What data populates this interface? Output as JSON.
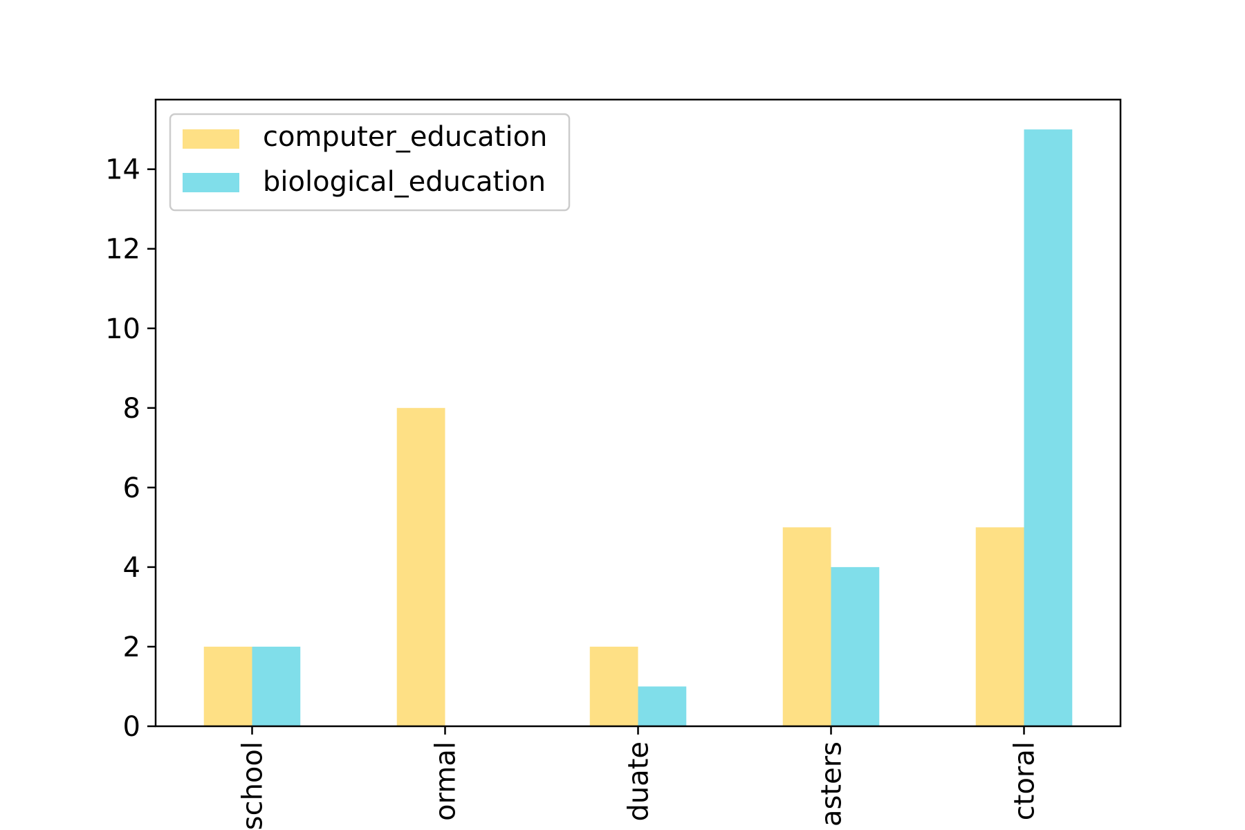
{
  "chart_data": {
    "type": "bar",
    "categories": [
      "school",
      "ormal",
      "duate",
      "asters",
      "ctoral"
    ],
    "series": [
      {
        "name": "computer_education",
        "values": [
          2,
          8,
          2,
          5,
          5
        ],
        "color": "#FEE085"
      },
      {
        "name": "biological_education",
        "values": [
          2,
          0,
          1,
          4,
          15
        ],
        "color": "#80DEEA"
      }
    ],
    "yticks": [
      0,
      2,
      4,
      6,
      8,
      10,
      12,
      14
    ],
    "ylim": [
      0,
      15.75
    ],
    "grid": false,
    "legend": "top-left"
  }
}
